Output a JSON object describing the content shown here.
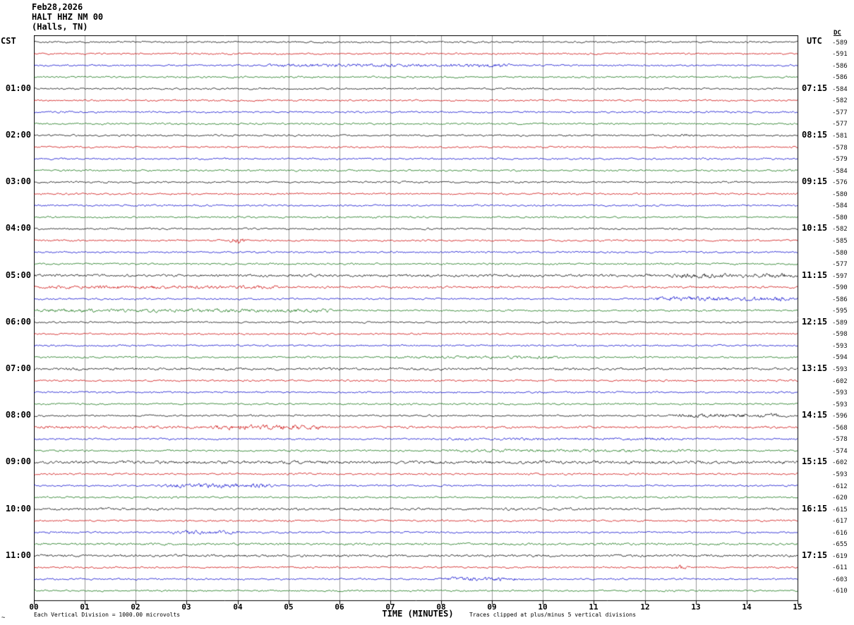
{
  "header": {
    "date": "Feb28,2026",
    "station": "HALT HHZ NM 00",
    "location": "(Halls, TN)"
  },
  "axes": {
    "left_tz": "CST",
    "right_tz": "UTC",
    "dc_label": "DC",
    "x_label": "TIME (MINUTES)",
    "x_ticks": [
      "00",
      "01",
      "02",
      "03",
      "04",
      "05",
      "06",
      "07",
      "08",
      "09",
      "10",
      "11",
      "12",
      "13",
      "14",
      "15"
    ]
  },
  "footer": {
    "scale_note": "Each Vertical Division = 1000.00 microvolts",
    "clip_note": "Traces clipped at plus/minus 5 vertical divisions",
    "corner_mark": "~"
  },
  "palette": {
    "black": "#000000",
    "red": "#cc0000",
    "blue": "#0000cc",
    "green": "#0a6e0a",
    "grid": "#999999",
    "background": "#ffffff"
  },
  "chart_data": {
    "type": "line",
    "description": "Helicorder seismogram: each line spans 15 minutes, 4 lines per hour, colors cycle black/red/blue/green. Left labels CST line start times, right labels UTC line end times, far right column is DC offset per line.",
    "x_range_minutes": [
      0,
      15
    ],
    "minutes_per_line": 15,
    "lines_per_hour": 4,
    "rows": [
      {
        "color": "black",
        "dc": -589
      },
      {
        "color": "red",
        "dc": -591
      },
      {
        "color": "blue",
        "dc": -586,
        "bursts": [
          {
            "s": 4.5,
            "e": 9.5,
            "a": 1.7
          }
        ]
      },
      {
        "color": "green",
        "dc": -586
      },
      {
        "color": "black",
        "dc": -584,
        "cst": "01:00",
        "utc": "07:15"
      },
      {
        "color": "red",
        "dc": -582
      },
      {
        "color": "blue",
        "dc": -577
      },
      {
        "color": "green",
        "dc": -577
      },
      {
        "color": "black",
        "dc": -581,
        "cst": "02:00",
        "utc": "08:15",
        "bursts": [
          {
            "s": 12.6,
            "e": 13,
            "a": 1.8
          }
        ]
      },
      {
        "color": "red",
        "dc": -578
      },
      {
        "color": "blue",
        "dc": -579
      },
      {
        "color": "green",
        "dc": -584
      },
      {
        "color": "black",
        "dc": -576,
        "cst": "03:00",
        "utc": "09:15"
      },
      {
        "color": "red",
        "dc": -580
      },
      {
        "color": "blue",
        "dc": -584
      },
      {
        "color": "green",
        "dc": -580
      },
      {
        "color": "black",
        "dc": -582,
        "cst": "04:00",
        "utc": "10:15"
      },
      {
        "color": "red",
        "dc": -585,
        "bursts": [
          {
            "s": 3.8,
            "e": 4.2,
            "a": 4.0
          }
        ]
      },
      {
        "color": "blue",
        "dc": -580
      },
      {
        "color": "green",
        "dc": -577
      },
      {
        "color": "black",
        "dc": -597,
        "cst": "05:00",
        "utc": "11:15",
        "amp": 1.3,
        "bursts": [
          {
            "s": 12.4,
            "e": 15,
            "a": 2.3
          }
        ]
      },
      {
        "color": "red",
        "dc": -590,
        "amp": 1.1,
        "bursts": [
          {
            "s": 0,
            "e": 5,
            "a": 1.8
          }
        ]
      },
      {
        "color": "blue",
        "dc": -586,
        "bursts": [
          {
            "s": 12,
            "e": 15,
            "a": 2.3
          }
        ]
      },
      {
        "color": "green",
        "dc": -595,
        "bursts": [
          {
            "s": 0,
            "e": 6,
            "a": 1.8
          }
        ]
      },
      {
        "color": "black",
        "dc": -589,
        "cst": "06:00",
        "utc": "12:15"
      },
      {
        "color": "red",
        "dc": -598
      },
      {
        "color": "blue",
        "dc": -593
      },
      {
        "color": "green",
        "dc": -594,
        "bursts": [
          {
            "s": 7,
            "e": 10.5,
            "a": 1.4
          }
        ]
      },
      {
        "color": "black",
        "dc": -593,
        "cst": "07:00",
        "utc": "13:15",
        "amp": 1.2
      },
      {
        "color": "red",
        "dc": -602
      },
      {
        "color": "blue",
        "dc": -593
      },
      {
        "color": "green",
        "dc": -593
      },
      {
        "color": "black",
        "dc": -596,
        "cst": "08:00",
        "utc": "14:15",
        "bursts": [
          {
            "s": 12.4,
            "e": 15,
            "a": 2.0
          }
        ]
      },
      {
        "color": "red",
        "dc": -568,
        "amp": 1.1,
        "bursts": [
          {
            "s": 3.4,
            "e": 5.8,
            "a": 2.6
          },
          {
            "s": 0,
            "e": 3.4,
            "a": 1.4
          }
        ]
      },
      {
        "color": "blue",
        "dc": -578,
        "bursts": [
          {
            "s": 8,
            "e": 13,
            "a": 1.4
          }
        ]
      },
      {
        "color": "green",
        "dc": -574,
        "bursts": [
          {
            "s": 8,
            "e": 13,
            "a": 1.4
          }
        ]
      },
      {
        "color": "black",
        "dc": -602,
        "cst": "09:00",
        "utc": "15:15",
        "amp": 1.5
      },
      {
        "color": "red",
        "dc": -593
      },
      {
        "color": "blue",
        "dc": -612,
        "bursts": [
          {
            "s": 2.4,
            "e": 4.8,
            "a": 2.2
          }
        ]
      },
      {
        "color": "green",
        "dc": -620
      },
      {
        "color": "black",
        "dc": -615,
        "cst": "10:00",
        "utc": "16:15",
        "amp": 1.2
      },
      {
        "color": "red",
        "dc": -617
      },
      {
        "color": "blue",
        "dc": -616,
        "bursts": [
          {
            "s": 2.5,
            "e": 4.2,
            "a": 1.8
          }
        ]
      },
      {
        "color": "green",
        "dc": -655,
        "amp": 1.1
      },
      {
        "color": "black",
        "dc": -619,
        "cst": "11:00",
        "utc": "17:15",
        "amp": 1.2
      },
      {
        "color": "red",
        "dc": -611,
        "bursts": [
          {
            "s": 12.5,
            "e": 12.9,
            "a": 2.8
          }
        ]
      },
      {
        "color": "blue",
        "dc": -603,
        "bursts": [
          {
            "s": 7.9,
            "e": 9.7,
            "a": 1.9
          }
        ]
      },
      {
        "color": "green",
        "dc": -610
      }
    ]
  }
}
